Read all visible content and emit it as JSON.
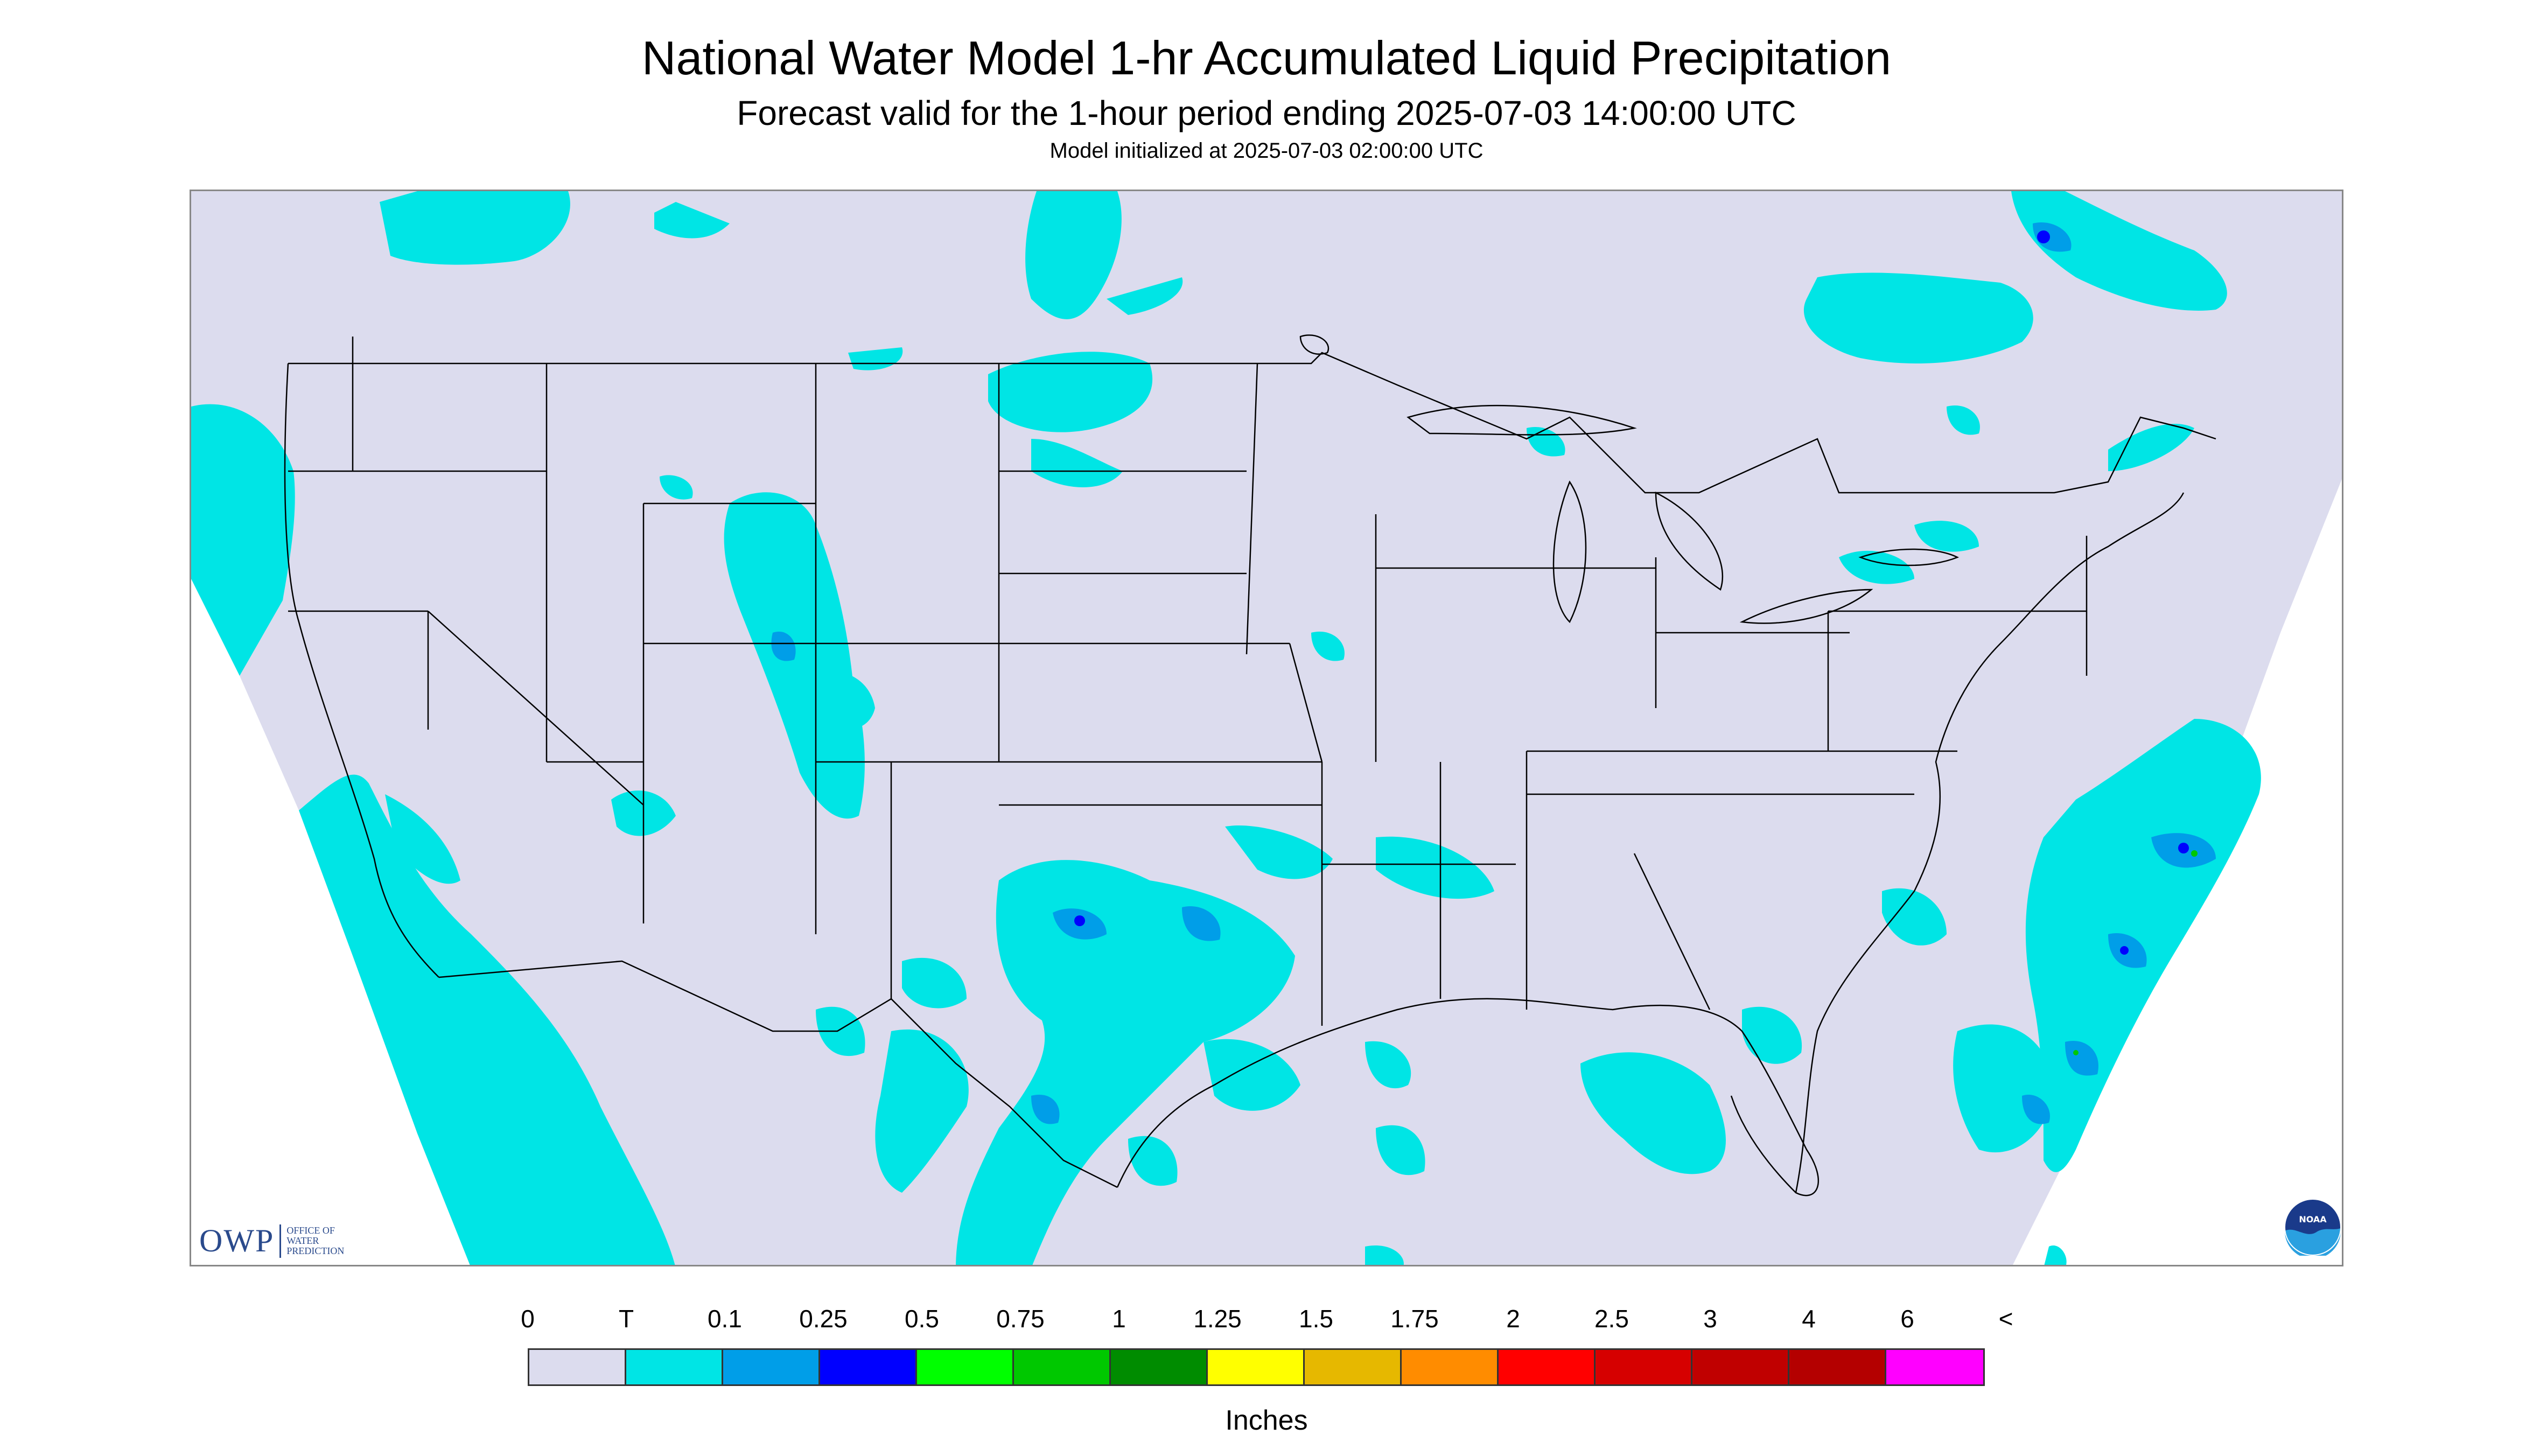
{
  "header": {
    "title": "National Water Model 1-hr Accumulated Liquid Precipitation",
    "subtitle": "Forecast valid for the 1-hour period ending 2025-07-03 14:00:00 UTC",
    "init": "Model initialized at 2025-07-03 02:00:00 UTC"
  },
  "logo": {
    "mark": "OWP",
    "lines": [
      "OFFICE OF",
      "WATER",
      "PREDICTION"
    ],
    "noaa": "NOAA"
  },
  "legend": {
    "labels": [
      "0",
      "T",
      "0.1",
      "0.25",
      "0.5",
      "0.75",
      "1",
      "1.25",
      "1.5",
      "1.75",
      "2",
      "2.5",
      "3",
      "4",
      "6",
      "<"
    ],
    "colors": [
      "#dcdcee",
      "#00e5e5",
      "#009ee8",
      "#0000ff",
      "#00ff00",
      "#00c800",
      "#008c00",
      "#ffff00",
      "#e6b800",
      "#ff8c00",
      "#ff0000",
      "#d60000",
      "#c00000",
      "#b40000",
      "#ff00ff",
      "#9955c9"
    ],
    "units": "Inches"
  },
  "colors": {
    "background": "#dcdcee",
    "trace": "#00e5e5",
    "light": "#009ee8",
    "moderate": "#0000ff",
    "heavy": "#00c800",
    "border": "#000000"
  }
}
